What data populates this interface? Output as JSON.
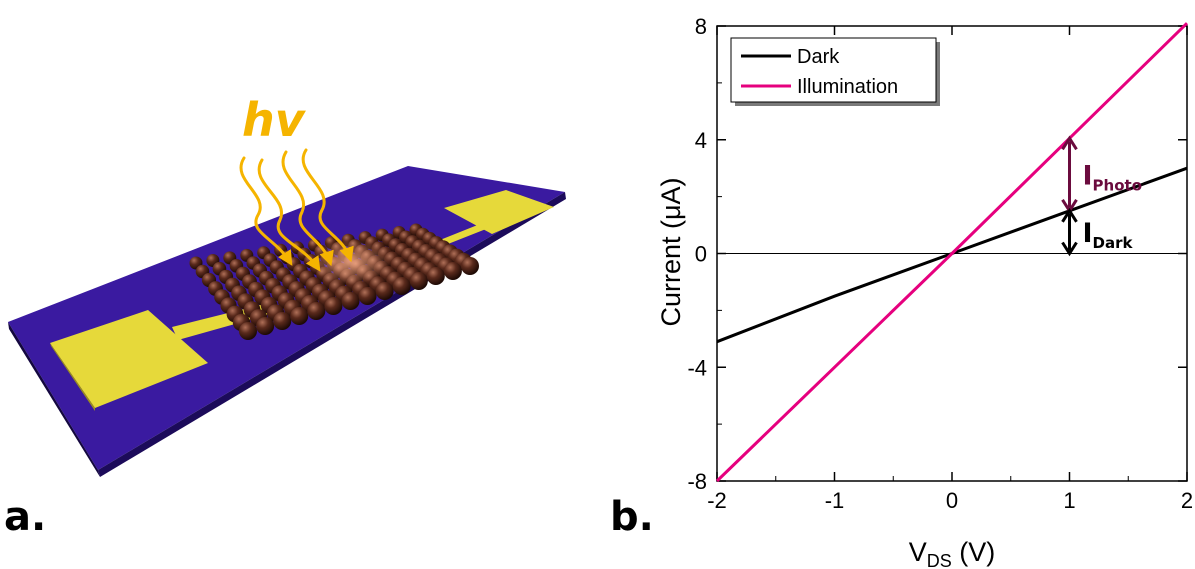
{
  "panels": {
    "a": {
      "label": "a.",
      "photon_label": "hv"
    },
    "b": {
      "label": "b."
    }
  },
  "colors": {
    "dark": "#000000",
    "illumination": "#e6007e",
    "photo_annotation": "#6b0b3e",
    "substrate": "#3a1aa0",
    "electrode": "#e6d93a",
    "nanoparticle": "#5a2a1c",
    "light": "#f5b400"
  },
  "chart_data": {
    "type": "line",
    "xlabel_main": "V",
    "xlabel_sub": "DS",
    "xlabel_unit": " (V)",
    "ylabel": "Current (μA)",
    "xlim": [
      -2,
      2
    ],
    "ylim": [
      -8,
      8
    ],
    "xticks": [
      -2,
      -1,
      0,
      1,
      2
    ],
    "yticks": [
      -8,
      -4,
      0,
      4,
      8
    ],
    "zero_line": true,
    "legend_position": "top-left",
    "series": [
      {
        "name": "Dark",
        "color": "#000000",
        "x": [
          -2,
          -1,
          0,
          1,
          2
        ],
        "y": [
          -3.1,
          -1.5,
          0,
          1.5,
          3.0
        ]
      },
      {
        "name": "Illumination",
        "color": "#e6007e",
        "x": [
          -2,
          -1,
          0,
          1,
          2
        ],
        "y": [
          -8,
          -4,
          0,
          4.05,
          8.1
        ]
      }
    ],
    "annotations": [
      {
        "main": "I",
        "sub": "Photo",
        "x": 1,
        "y_from": 1.5,
        "y_to": 4.05,
        "color": "#6b0b3e"
      },
      {
        "main": "I",
        "sub": "Dark",
        "x": 1,
        "y_from": 0,
        "y_to": 1.5,
        "color": "#000000"
      }
    ]
  }
}
